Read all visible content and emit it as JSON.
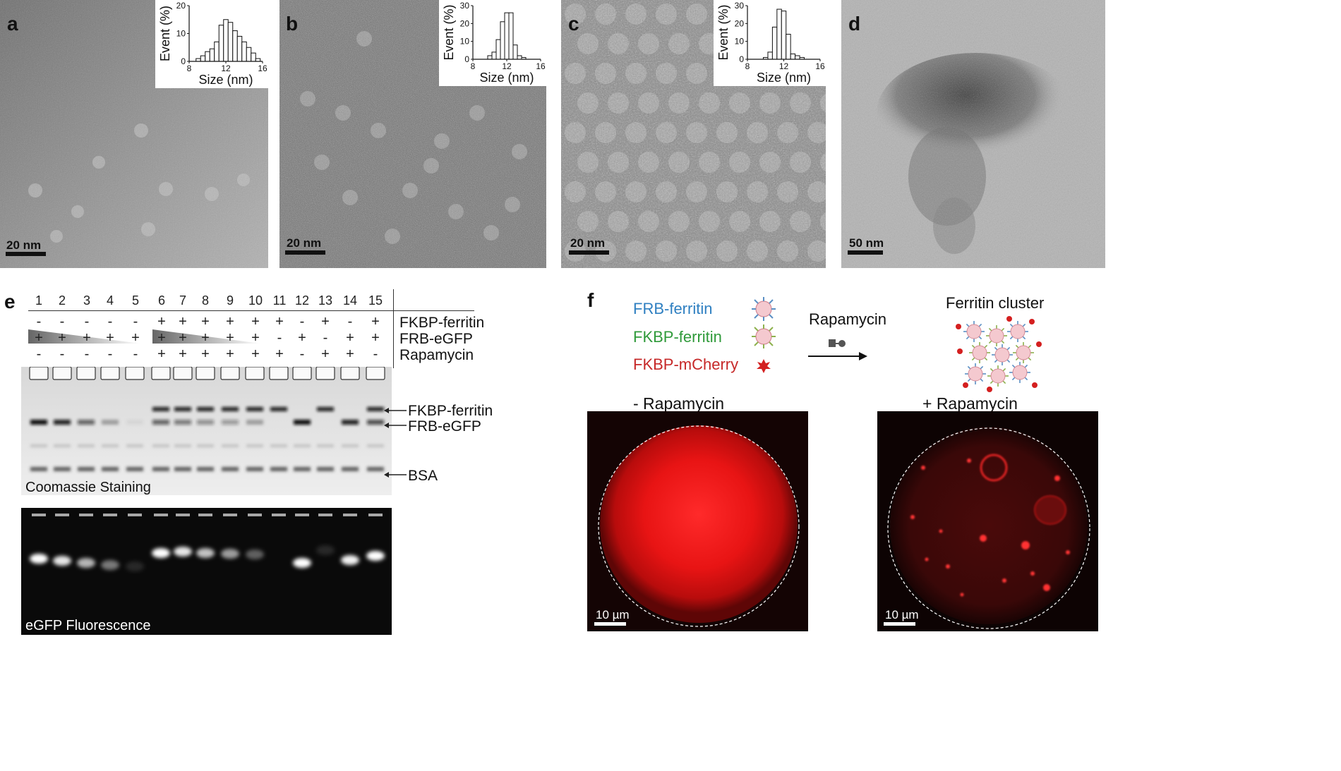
{
  "panels": {
    "a": {
      "letter": "a",
      "scale": "20 nm",
      "hist": {
        "ylabel": "Event (%)",
        "xlabel": "Size (nm)",
        "yticks": [
          "0",
          "10",
          "20"
        ],
        "xticks": [
          "8",
          "12",
          "16"
        ]
      }
    },
    "b": {
      "letter": "b",
      "scale": "20 nm",
      "hist": {
        "ylabel": "Event (%)",
        "xlabel": "Size (nm)",
        "yticks": [
          "0",
          "10",
          "20",
          "30"
        ],
        "xticks": [
          "8",
          "12",
          "16"
        ]
      }
    },
    "c": {
      "letter": "c",
      "scale": "20 nm",
      "hist": {
        "ylabel": "Event (%)",
        "xlabel": "Size (nm)",
        "yticks": [
          "0",
          "10",
          "20",
          "30"
        ],
        "xticks": [
          "8",
          "12",
          "16"
        ]
      }
    },
    "d": {
      "letter": "d",
      "scale": "50 nm"
    },
    "e": {
      "letter": "e",
      "lanes": [
        "1",
        "2",
        "3",
        "4",
        "5",
        "6",
        "7",
        "8",
        "9",
        "10",
        "11",
        "12",
        "13",
        "14",
        "15"
      ],
      "rows": [
        {
          "label": "FKBP-ferritin",
          "signs": [
            "-",
            "-",
            "-",
            "-",
            "-",
            "+",
            "+",
            "+",
            "+",
            "+",
            "+",
            "-",
            "+",
            "-",
            "+"
          ]
        },
        {
          "label": "FRB-eGFP",
          "signs": [
            "+",
            "+",
            "+",
            "+",
            "+",
            "+",
            "+",
            "+",
            "+",
            "+",
            "-",
            "+",
            "-",
            "+",
            "+"
          ]
        },
        {
          "label": "Rapamycin",
          "signs": [
            "-",
            "-",
            "-",
            "-",
            "-",
            "+",
            "+",
            "+",
            "+",
            "+",
            "+",
            "-",
            "+",
            "+",
            "-"
          ]
        }
      ],
      "band_labels": [
        "FKBP-ferritin",
        "FRB-eGFP",
        "BSA"
      ],
      "coomassie_caption": "Coomassie Staining",
      "fluor_caption": "eGFP Fluorescence"
    },
    "f": {
      "letter": "f",
      "legend": [
        {
          "text": "FRB-ferritin",
          "color": "#2e7fc1"
        },
        {
          "text": "FKBP-ferritin",
          "color": "#2f9a3a"
        },
        {
          "text": "FKBP-mCherry",
          "color": "#d42a2a"
        }
      ],
      "arrow_label": "Rapamycin",
      "cluster_title": "Ferritin cluster",
      "minus_label": "- Rapamycin",
      "plus_label": "+ Rapamycin",
      "scale": "10 µm"
    }
  },
  "chart_data": [
    {
      "type": "bar",
      "title": "",
      "xlabel": "Size (nm)",
      "ylabel": "Event (%)",
      "xlim": [
        8,
        16
      ],
      "ylim": [
        0,
        20
      ],
      "x": [
        9,
        9.5,
        10,
        10.5,
        11,
        11.5,
        12,
        12.5,
        13,
        13.5,
        14,
        14.5,
        15,
        15.5
      ],
      "values": [
        1,
        2,
        3.5,
        4.5,
        7,
        13,
        15,
        14,
        11,
        9,
        7,
        5,
        3,
        1
      ]
    },
    {
      "type": "bar",
      "title": "",
      "xlabel": "Size (nm)",
      "ylabel": "Event (%)",
      "xlim": [
        8,
        16
      ],
      "ylim": [
        0,
        30
      ],
      "x": [
        10,
        10.5,
        11,
        11.5,
        12,
        12.5,
        13,
        13.5,
        14
      ],
      "values": [
        2,
        4,
        11,
        21,
        26,
        26,
        8,
        2,
        1
      ]
    },
    {
      "type": "bar",
      "title": "",
      "xlabel": "Size (nm)",
      "ylabel": "Event (%)",
      "xlim": [
        8,
        16
      ],
      "ylim": [
        0,
        30
      ],
      "x": [
        10,
        10.5,
        11,
        11.5,
        12,
        12.5,
        13,
        13.5,
        14
      ],
      "values": [
        1,
        4,
        18,
        28,
        27,
        14,
        3,
        2,
        1
      ]
    }
  ]
}
